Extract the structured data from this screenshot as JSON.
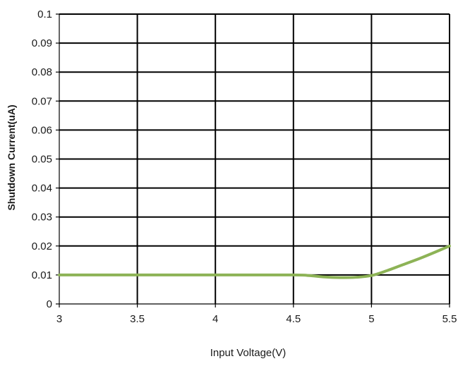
{
  "chart_data": {
    "type": "line",
    "title": "",
    "xlabel": "Input Voltage(V)",
    "ylabel": "Shutdown Current(uA)",
    "xlim": [
      3,
      5.5
    ],
    "ylim": [
      0,
      0.1
    ],
    "x_ticks": [
      "3",
      "3.5",
      "4",
      "4.5",
      "5",
      "5.5"
    ],
    "y_ticks": [
      "0",
      "0.01",
      "0.02",
      "0.03",
      "0.04",
      "0.05",
      "0.06",
      "0.07",
      "0.08",
      "0.09",
      "0.1"
    ],
    "grid": true,
    "legend": "none",
    "series": [
      {
        "color": "#8DB356",
        "x": [
          3,
          3.5,
          4,
          4.5,
          4.6,
          4.7,
          4.8,
          4.9,
          5,
          5.1,
          5.2,
          5.3,
          5.4,
          5.5
        ],
        "y": [
          0.01,
          0.01,
          0.01,
          0.01,
          0.0098,
          0.0093,
          0.0091,
          0.0092,
          0.0098,
          0.0115,
          0.0135,
          0.0155,
          0.0177,
          0.02
        ]
      }
    ]
  }
}
